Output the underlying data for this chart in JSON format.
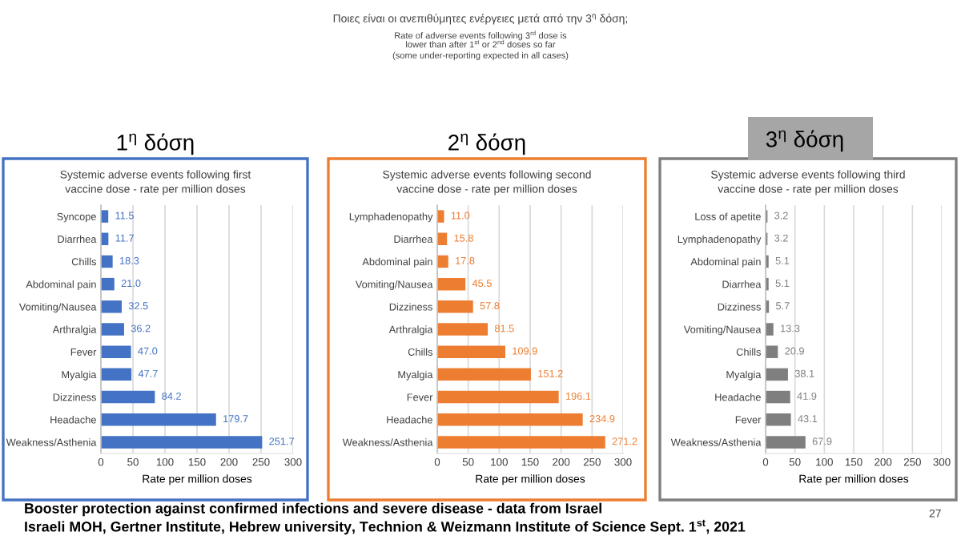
{
  "chart_data": [
    {
      "type": "bar",
      "orientation": "horizontal",
      "title": "1$^{η}$ δόση",
      "subtitle": "Systemic adverse events following first\nvaccine dose - rate per million doses",
      "xlabel": "Rate per million doses",
      "categories": [
        "Syncope",
        "Diarrhea",
        "Chills",
        "Abdominal pain",
        "Vomiting/Nausea",
        "Arthralgia",
        "Fever",
        "Myalgia",
        "Dizziness",
        "Headache",
        "Weakness/Asthenia"
      ],
      "series": [
        {
          "color": "#4472c4",
          "values": [
            11.5,
            11.7,
            18.3,
            21.0,
            32.5,
            36.2,
            47.0,
            47.7,
            84.2,
            179.7,
            251.7
          ],
          "value_labels": [
            "11.5",
            "11.7",
            "18.3",
            "21.0",
            "32.5",
            "36.2",
            "47.0",
            "47.7",
            "84.2",
            "179.7",
            "251.7"
          ]
        }
      ],
      "xlim": [
        0,
        300
      ],
      "xticks": [
        0,
        50,
        100,
        150,
        200,
        250,
        300
      ],
      "grid": "x",
      "annotations": [
        "Ποιες είναι οι ανεπιθύμητες ενέργειες μετά από την 3$^{η}$ δόση;",
        "Rate of adverse events following 3$^{rd}$ dose is\nlower than after 1$^{st}$ or 2$^{nd}$ doses so far",
        "(some under-reporting expected in all cases)",
        "Booster protection against confirmed infections and severe disease - data from Israel",
        "Israeli MOH, Gertner Institute, Hebrew university, Technion & Weizmann Institute of Science Sept. 1$^{st}$, 2021",
        "27"
      ]
    },
    {
      "type": "bar",
      "orientation": "horizontal",
      "title": "2$^{η}$ δόση",
      "subtitle": "Systemic adverse events following second\nvaccine dose - rate per million doses",
      "xlabel": "Rate per million doses",
      "categories": [
        "Lymphadenopathy",
        "Diarrhea",
        "Abdominal pain",
        "Vomiting/Nausea",
        "Dizziness",
        "Arthralgia",
        "Chills",
        "Myalgia",
        "Fever",
        "Headache",
        "Weakness/Asthenia"
      ],
      "series": [
        {
          "color": "#ed7d31",
          "values": [
            11.0,
            15.8,
            17.8,
            45.5,
            57.8,
            81.5,
            109.9,
            151.2,
            196.1,
            234.9,
            271.2
          ],
          "value_labels": [
            "11.0",
            "15.8",
            "17.8",
            "45.5",
            "57.8",
            "81.5",
            "109.9",
            "151.2",
            "196.1",
            "234.9",
            "271.2"
          ]
        }
      ],
      "xlim": [
        0,
        300
      ],
      "xticks": [
        0,
        50,
        100,
        150,
        200,
        250,
        300
      ],
      "grid": "x"
    },
    {
      "type": "bar",
      "orientation": "horizontal",
      "title": "3$^{η}$ δόση",
      "subtitle": "Systemic adverse events following third\nvaccine dose - rate per million doses",
      "xlabel": "Rate per million doses",
      "categories": [
        "Loss of apetite",
        "Lymphadenopathy",
        "Abdominal pain",
        "Diarrhea",
        "Dizziness",
        "Vomiting/Nausea",
        "Chills",
        "Myalgia",
        "Headache",
        "Fever",
        "Weakness/Asthenia"
      ],
      "series": [
        {
          "color": "#7f7f7f",
          "values": [
            3.2,
            3.2,
            5.1,
            5.1,
            5.7,
            13.3,
            20.9,
            38.1,
            41.9,
            43.1,
            67.9
          ]
        }
      ],
      "xlim": [
        0,
        300
      ],
      "xticks": [
        0,
        50,
        100,
        150,
        200,
        250,
        300
      ],
      "grid": "x",
      "data_labels": true
    }
  ]
}
